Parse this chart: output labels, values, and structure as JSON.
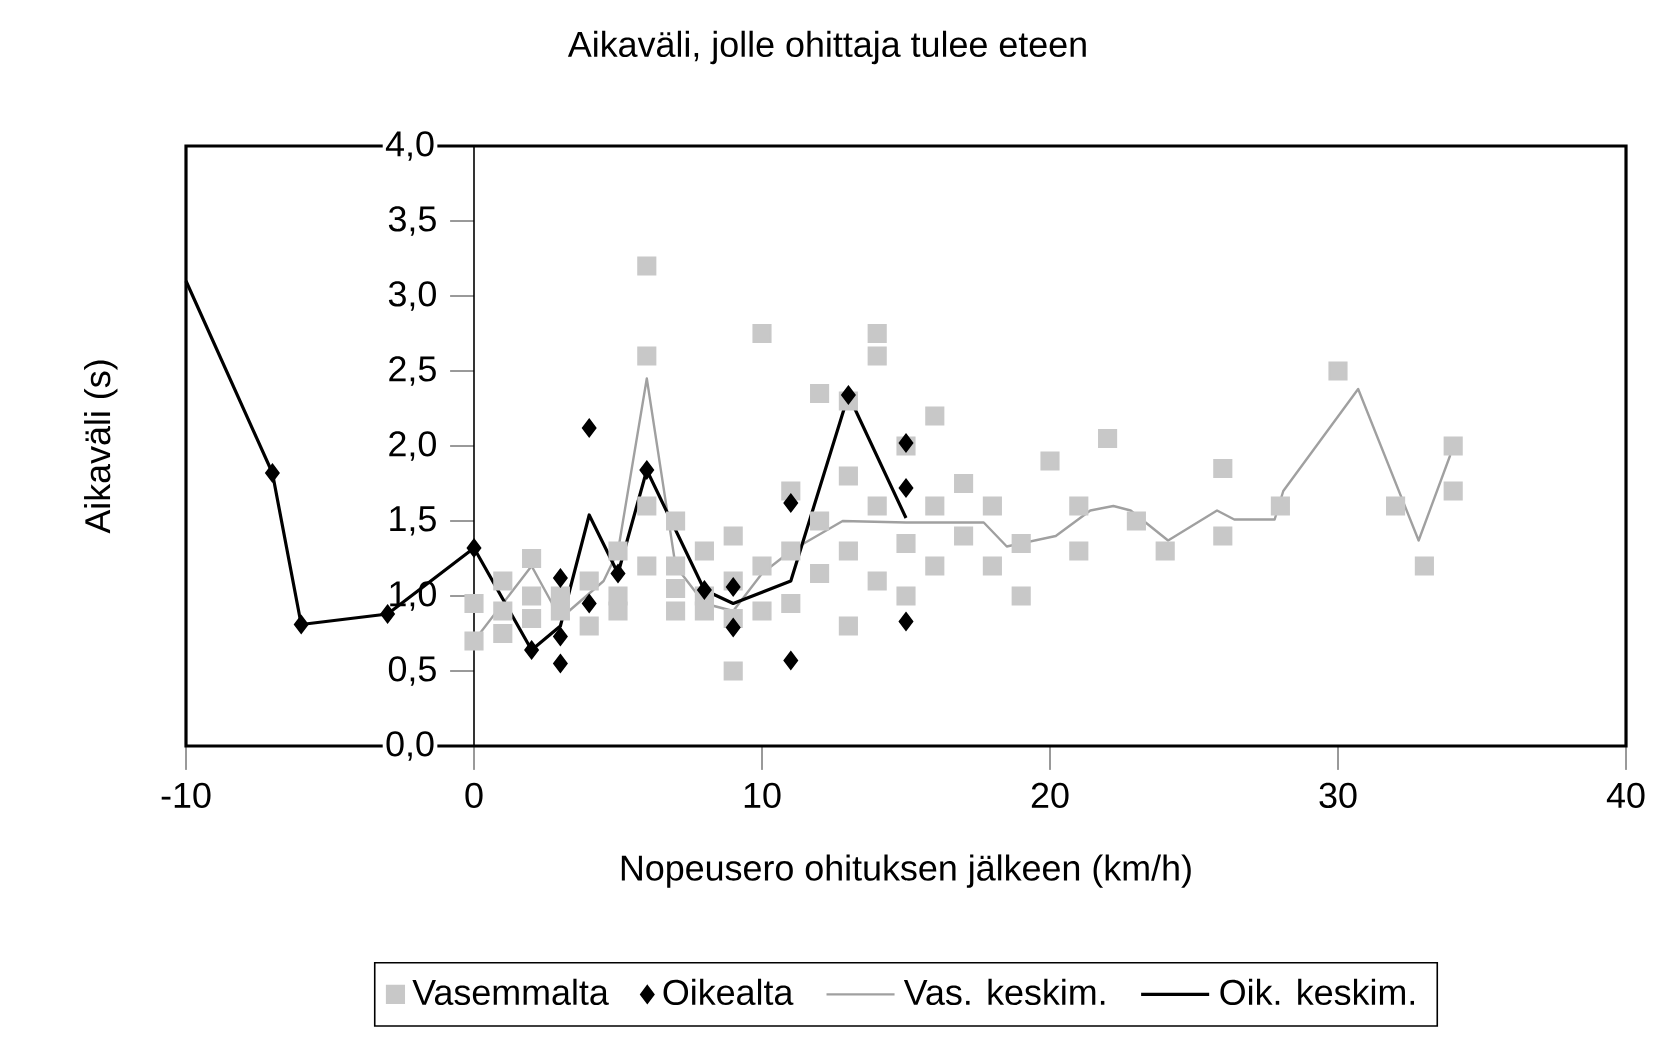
{
  "chart_data": {
    "type": "scatter",
    "title": "Aikaväli, jolle ohittaja tulee eteen",
    "xlabel": "Nopeusero ohituksen jälkeen (km/h)",
    "ylabel": "Aikaväli (s)",
    "xlim": [
      -10,
      40
    ],
    "xticks": [
      -10,
      0,
      10,
      20,
      30,
      40
    ],
    "ylim": [
      0,
      4
    ],
    "yticks": [
      {
        "value": 0,
        "label": "0,0"
      },
      {
        "value": 0.5,
        "label": "0,5"
      },
      {
        "value": 1,
        "label": "1,0"
      },
      {
        "value": 1.5,
        "label": "1,5"
      },
      {
        "value": 2,
        "label": "2,0"
      },
      {
        "value": 2.5,
        "label": "2,5"
      },
      {
        "value": 3,
        "label": "3,0"
      },
      {
        "value": 3.5,
        "label": "3,5"
      },
      {
        "value": 4,
        "label": "4,0"
      }
    ],
    "grid": false,
    "legend": "bottom",
    "series": [
      {
        "name": "Vasemmalta",
        "type": "scatter",
        "marker": "square",
        "color": "#c8c8c8",
        "x": [
          0,
          0,
          1,
          1,
          1,
          2,
          2,
          2,
          3,
          3,
          4,
          4,
          5,
          5,
          5,
          6,
          6,
          6,
          6,
          7,
          7,
          7,
          7,
          8,
          8,
          8,
          9,
          9,
          9,
          9,
          10,
          10,
          10,
          11,
          11,
          11,
          12,
          12,
          12,
          13,
          13,
          13,
          14,
          14,
          14,
          15,
          15,
          15,
          16,
          16,
          16,
          17,
          17,
          18,
          18,
          19,
          19,
          20,
          21,
          21,
          22,
          23,
          24,
          26,
          26,
          28,
          30,
          32,
          33,
          34,
          34,
          14,
          13
        ],
        "values": [
          0.7,
          0.95,
          0.9,
          1.1,
          0.75,
          1.25,
          1.0,
          0.85,
          0.9,
          1.0,
          1.1,
          0.8,
          1.3,
          1.0,
          0.9,
          2.6,
          1.6,
          1.2,
          3.2,
          1.5,
          1.2,
          0.9,
          1.05,
          1.0,
          1.3,
          0.9,
          1.4,
          0.85,
          0.5,
          1.1,
          2.75,
          1.2,
          0.9,
          1.7,
          1.3,
          0.95,
          2.35,
          1.5,
          1.15,
          1.8,
          1.3,
          0.8,
          2.6,
          1.6,
          1.1,
          2.0,
          1.35,
          1.0,
          2.2,
          1.6,
          1.2,
          1.75,
          1.4,
          1.6,
          1.2,
          1.35,
          1.0,
          1.9,
          1.6,
          1.3,
          2.05,
          1.5,
          1.3,
          1.85,
          1.4,
          1.6,
          2.5,
          1.6,
          1.2,
          2.0,
          1.7,
          2.75,
          2.3
        ]
      },
      {
        "name": "Oikealta",
        "type": "scatter",
        "marker": "diamond",
        "color": "#000000",
        "x": [
          -7,
          -6,
          -3,
          0,
          2,
          3,
          3,
          3,
          4,
          4,
          5,
          6,
          8,
          9,
          9,
          11,
          11,
          13,
          15,
          15,
          15
        ],
        "values": [
          1.82,
          0.81,
          0.88,
          1.32,
          0.64,
          1.12,
          0.73,
          0.55,
          2.12,
          0.95,
          1.15,
          1.84,
          1.04,
          1.06,
          0.79,
          1.62,
          0.57,
          2.34,
          2.02,
          1.72,
          0.83
        ]
      },
      {
        "name": "Vas. keskim.",
        "type": "line",
        "marker": "none",
        "color": "#a0a0a0",
        "x": [
          0,
          2,
          3,
          4.5,
          5,
          6,
          7,
          8,
          9,
          10,
          11,
          12.8,
          15,
          16.9,
          17.7,
          18.5,
          20.2,
          21.4,
          22.2,
          22.8,
          24.1,
          25.8,
          26.4,
          27.8,
          28.1,
          30.7,
          32.8,
          33.9
        ],
        "values": [
          0.7,
          1.2,
          0.85,
          1.1,
          1.3,
          2.45,
          1.2,
          0.95,
          0.9,
          1.15,
          1.3,
          1.5,
          1.49,
          1.49,
          1.49,
          1.33,
          1.4,
          1.57,
          1.6,
          1.57,
          1.37,
          1.57,
          1.51,
          1.51,
          1.7,
          2.38,
          1.37,
          1.94
        ]
      },
      {
        "name": "Oik. keskim.",
        "type": "line",
        "marker": "none",
        "color": "#000000",
        "x": [
          -10,
          -7,
          -6,
          -3,
          0,
          2,
          3,
          4,
          5,
          6,
          8,
          9,
          11,
          13,
          15
        ],
        "values": [
          3.1,
          1.82,
          0.81,
          0.88,
          1.32,
          0.64,
          0.8,
          1.54,
          1.15,
          1.84,
          1.04,
          0.95,
          1.1,
          2.34,
          1.52
        ]
      }
    ]
  }
}
